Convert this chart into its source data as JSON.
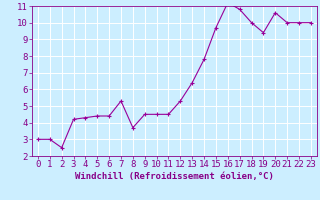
{
  "x": [
    0,
    1,
    2,
    3,
    4,
    5,
    6,
    7,
    8,
    9,
    10,
    11,
    12,
    13,
    14,
    15,
    16,
    17,
    18,
    19,
    20,
    21,
    22,
    23
  ],
  "y": [
    3.0,
    3.0,
    2.5,
    4.2,
    4.3,
    4.4,
    4.4,
    5.3,
    3.7,
    4.5,
    4.5,
    4.5,
    5.3,
    6.4,
    7.8,
    9.7,
    11.2,
    10.8,
    10.0,
    9.4,
    10.6,
    10.0,
    10.0,
    10.0
  ],
  "line_color": "#990099",
  "marker": "+",
  "marker_size": 3,
  "xlabel": "Windchill (Refroidissement éolien,°C)",
  "xlim": [
    -0.5,
    23.5
  ],
  "ylim": [
    2,
    11
  ],
  "yticks": [
    2,
    3,
    4,
    5,
    6,
    7,
    8,
    9,
    10,
    11
  ],
  "xticks": [
    0,
    1,
    2,
    3,
    4,
    5,
    6,
    7,
    8,
    9,
    10,
    11,
    12,
    13,
    14,
    15,
    16,
    17,
    18,
    19,
    20,
    21,
    22,
    23
  ],
  "background_color": "#cceeff",
  "grid_color": "#ffffff",
  "line_tick_color": "#880088",
  "xlabel_fontsize": 6.5,
  "tick_fontsize": 6.5
}
